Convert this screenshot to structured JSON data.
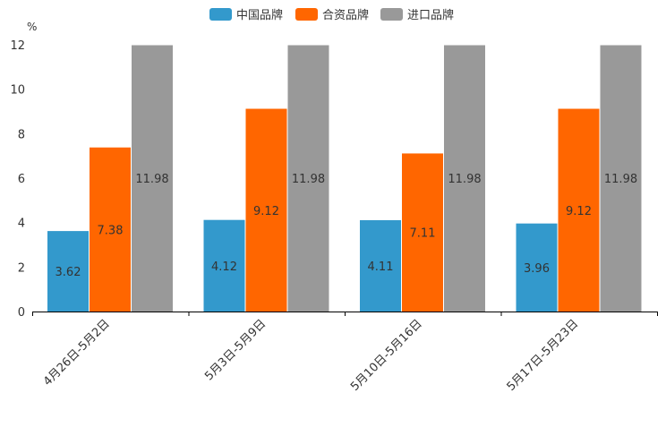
{
  "chart_data": {
    "type": "bar",
    "title": "",
    "xlabel": "",
    "ylabel": "%",
    "ylim": [
      0,
      12
    ],
    "yticks": [
      0,
      2,
      4,
      6,
      8,
      10,
      12
    ],
    "grid": false,
    "legend_position": "top-center",
    "categories": [
      "4月26日-5月2日",
      "5月3日-5月9日",
      "5月10日-5月16日",
      "5月17日-5月23日"
    ],
    "series": [
      {
        "name": "中国品牌",
        "color": "#3399CC",
        "values": [
          3.62,
          4.12,
          4.11,
          3.96
        ]
      },
      {
        "name": "合资品牌",
        "color": "#FF6600",
        "values": [
          7.38,
          9.12,
          7.11,
          9.12
        ]
      },
      {
        "name": "进口品牌",
        "color": "#999999",
        "values": [
          11.98,
          11.98,
          11.98,
          11.98
        ]
      }
    ]
  }
}
